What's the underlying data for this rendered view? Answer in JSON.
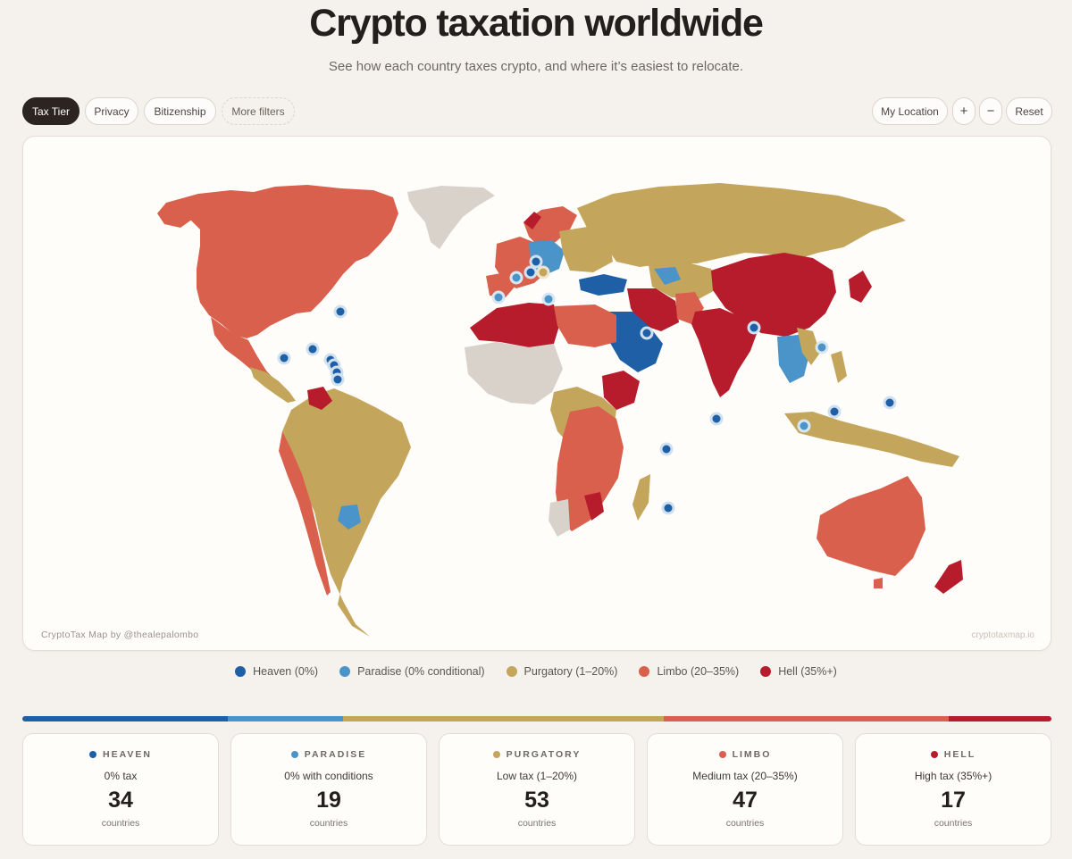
{
  "header": {
    "title": "Crypto taxation worldwide",
    "subtitle": "See how each country taxes crypto, and where it’s easiest to relocate."
  },
  "filters": {
    "tax_tier": "Tax Tier",
    "privacy": "Privacy",
    "bitizenship": "Bitizenship",
    "more": "More filters"
  },
  "map_controls": {
    "location": "My Location",
    "zoom_in": "+",
    "zoom_out": "−",
    "reset": "Reset"
  },
  "map": {
    "credit_left": "CryptoTax Map by @thealepalombo",
    "credit_right": "cryptotaxmap.io"
  },
  "colors": {
    "heaven": "#1f5fa6",
    "paradise": "#4a94c9",
    "purgatory": "#c4a55c",
    "limbo": "#d9604c",
    "hell": "#b71c2c",
    "no_data": "#d8d2cb"
  },
  "legend": [
    {
      "label": "Heaven (0%)",
      "color": "#1f5fa6"
    },
    {
      "label": "Paradise (0% conditional)",
      "color": "#4a94c9"
    },
    {
      "label": "Purgatory (1–20%)",
      "color": "#c4a55c"
    },
    {
      "label": "Limbo (20–35%)",
      "color": "#d9604c"
    },
    {
      "label": "Hell (35%+)",
      "color": "#b71c2c"
    }
  ],
  "tiers": [
    {
      "name": "HEAVEN",
      "desc": "0% tax",
      "count": "34",
      "unit": "countries",
      "color": "#1f5fa6"
    },
    {
      "name": "PARADISE",
      "desc": "0% with conditions",
      "count": "19",
      "unit": "countries",
      "color": "#4a94c9"
    },
    {
      "name": "PURGATORY",
      "desc": "Low tax (1–20%)",
      "count": "53",
      "unit": "countries",
      "color": "#c4a55c"
    },
    {
      "name": "LIMBO",
      "desc": "Medium tax (20–35%)",
      "count": "47",
      "unit": "countries",
      "color": "#d9604c"
    },
    {
      "name": "HELL",
      "desc": "High tax (35%+)",
      "count": "17",
      "unit": "countries",
      "color": "#b71c2c"
    }
  ]
}
